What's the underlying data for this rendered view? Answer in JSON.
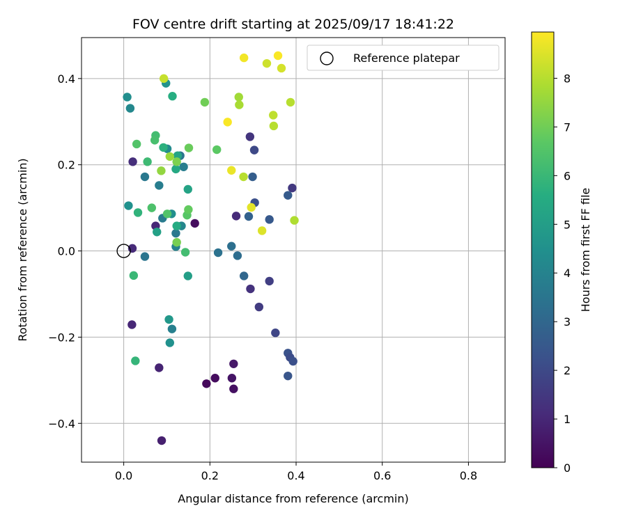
{
  "chart_data": {
    "type": "scatter",
    "title": "FOV centre drift starting at 2025/09/17 18:41:22",
    "xlabel": "Angular distance from reference (arcmin)",
    "ylabel": "Rotation from reference (arcmin)",
    "xlim": [
      -0.098,
      0.885
    ],
    "ylim": [
      -0.49,
      0.495
    ],
    "xticks": [
      0.0,
      0.2,
      0.4,
      0.6,
      0.8
    ],
    "xtick_labels": [
      "0.0",
      "0.2",
      "0.4",
      "0.6",
      "0.8"
    ],
    "yticks": [
      -0.4,
      -0.2,
      0.0,
      0.2,
      0.4
    ],
    "ytick_labels": [
      "−0.4",
      "−0.2",
      "0.0",
      "0.2",
      "0.4"
    ],
    "grid": true,
    "legend": {
      "placement": "top-right",
      "entries": [
        "Reference platepar"
      ]
    },
    "reference_point": {
      "x": 0.0,
      "y": 0.0
    },
    "colorbar": {
      "label": "Hours from first FF file",
      "range": [
        0,
        8.95
      ],
      "ticks": [
        0,
        1,
        2,
        3,
        4,
        5,
        6,
        7,
        8
      ],
      "tick_labels": [
        "0",
        "1",
        "2",
        "3",
        "4",
        "5",
        "6",
        "7",
        "8"
      ],
      "colormap": "viridis"
    },
    "points": [
      {
        "x": 0.165,
        "y": 0.064,
        "h": 0.3
      },
      {
        "x": 0.192,
        "y": -0.308,
        "h": 0.2
      },
      {
        "x": 0.212,
        "y": -0.295,
        "h": 0.3
      },
      {
        "x": 0.251,
        "y": -0.295,
        "h": 0.5
      },
      {
        "x": 0.255,
        "y": -0.262,
        "h": 0.6
      },
      {
        "x": 0.255,
        "y": -0.32,
        "h": 0.4
      },
      {
        "x": 0.088,
        "y": -0.44,
        "h": 0.8
      },
      {
        "x": 0.082,
        "y": -0.271,
        "h": 0.9
      },
      {
        "x": 0.019,
        "y": -0.171,
        "h": 1.0
      },
      {
        "x": 0.02,
        "y": 0.006,
        "h": 1.1
      },
      {
        "x": 0.021,
        "y": 0.207,
        "h": 1.2
      },
      {
        "x": 0.074,
        "y": 0.058,
        "h": 1.0
      },
      {
        "x": 0.261,
        "y": 0.081,
        "h": 1.1
      },
      {
        "x": 0.294,
        "y": -0.088,
        "h": 1.3
      },
      {
        "x": 0.293,
        "y": 0.265,
        "h": 1.4
      },
      {
        "x": 0.314,
        "y": -0.13,
        "h": 1.6
      },
      {
        "x": 0.338,
        "y": -0.07,
        "h": 1.7
      },
      {
        "x": 0.391,
        "y": 0.146,
        "h": 1.5
      },
      {
        "x": 0.352,
        "y": -0.19,
        "h": 1.9
      },
      {
        "x": 0.303,
        "y": 0.234,
        "h": 2.0
      },
      {
        "x": 0.304,
        "y": 0.112,
        "h": 2.2
      },
      {
        "x": 0.338,
        "y": 0.073,
        "h": 2.5
      },
      {
        "x": 0.381,
        "y": -0.237,
        "h": 2.3
      },
      {
        "x": 0.386,
        "y": -0.247,
        "h": 2.1
      },
      {
        "x": 0.393,
        "y": -0.256,
        "h": 2.2
      },
      {
        "x": 0.381,
        "y": -0.29,
        "h": 2.4
      },
      {
        "x": 0.381,
        "y": 0.129,
        "h": 2.6
      },
      {
        "x": 0.299,
        "y": 0.172,
        "h": 2.7
      },
      {
        "x": 0.29,
        "y": 0.08,
        "h": 2.8
      },
      {
        "x": 0.279,
        "y": -0.058,
        "h": 3.0
      },
      {
        "x": 0.264,
        "y": -0.011,
        "h": 3.2
      },
      {
        "x": 0.25,
        "y": 0.011,
        "h": 3.3
      },
      {
        "x": 0.219,
        "y": -0.004,
        "h": 3.4
      },
      {
        "x": 0.049,
        "y": -0.013,
        "h": 3.5
      },
      {
        "x": 0.049,
        "y": 0.172,
        "h": 3.6
      },
      {
        "x": 0.09,
        "y": 0.076,
        "h": 3.7
      },
      {
        "x": 0.082,
        "y": 0.152,
        "h": 3.8
      },
      {
        "x": 0.112,
        "y": -0.181,
        "h": 3.9
      },
      {
        "x": 0.121,
        "y": 0.041,
        "h": 3.6
      },
      {
        "x": 0.131,
        "y": 0.221,
        "h": 3.5
      },
      {
        "x": 0.139,
        "y": 0.195,
        "h": 3.8
      },
      {
        "x": 0.121,
        "y": 0.01,
        "h": 4.0
      },
      {
        "x": 0.134,
        "y": 0.058,
        "h": 4.1
      },
      {
        "x": 0.015,
        "y": 0.331,
        "h": 4.2
      },
      {
        "x": 0.101,
        "y": 0.237,
        "h": 4.3
      },
      {
        "x": 0.008,
        "y": 0.357,
        "h": 4.4
      },
      {
        "x": 0.107,
        "y": -0.213,
        "h": 4.5
      },
      {
        "x": 0.098,
        "y": 0.389,
        "h": 4.6
      },
      {
        "x": 0.011,
        "y": 0.105,
        "h": 4.5
      },
      {
        "x": 0.111,
        "y": 0.086,
        "h": 4.4
      },
      {
        "x": 0.105,
        "y": -0.159,
        "h": 4.8
      },
      {
        "x": 0.149,
        "y": -0.058,
        "h": 5.0
      },
      {
        "x": 0.077,
        "y": 0.044,
        "h": 5.1
      },
      {
        "x": 0.149,
        "y": 0.143,
        "h": 5.2
      },
      {
        "x": 0.125,
        "y": 0.221,
        "h": 5.3
      },
      {
        "x": 0.121,
        "y": 0.19,
        "h": 5.4
      },
      {
        "x": 0.123,
        "y": 0.058,
        "h": 5.5
      },
      {
        "x": 0.113,
        "y": 0.359,
        "h": 5.6
      },
      {
        "x": 0.092,
        "y": 0.24,
        "h": 5.7
      },
      {
        "x": 0.033,
        "y": 0.089,
        "h": 5.8
      },
      {
        "x": 0.027,
        "y": -0.255,
        "h": 5.9
      },
      {
        "x": 0.023,
        "y": -0.057,
        "h": 6.0
      },
      {
        "x": 0.055,
        "y": 0.207,
        "h": 6.1
      },
      {
        "x": 0.074,
        "y": 0.268,
        "h": 6.2
      },
      {
        "x": 0.072,
        "y": 0.257,
        "h": 6.3
      },
      {
        "x": 0.143,
        "y": -0.003,
        "h": 6.2
      },
      {
        "x": 0.065,
        "y": 0.1,
        "h": 6.4
      },
      {
        "x": 0.101,
        "y": 0.086,
        "h": 6.5
      },
      {
        "x": 0.03,
        "y": 0.248,
        "h": 6.5
      },
      {
        "x": 0.147,
        "y": 0.083,
        "h": 6.6
      },
      {
        "x": 0.216,
        "y": 0.235,
        "h": 6.7
      },
      {
        "x": 0.15,
        "y": 0.096,
        "h": 6.8
      },
      {
        "x": 0.151,
        "y": 0.239,
        "h": 6.9
      },
      {
        "x": 0.188,
        "y": 0.345,
        "h": 7.0
      },
      {
        "x": 0.123,
        "y": 0.02,
        "h": 7.1
      },
      {
        "x": 0.123,
        "y": 0.207,
        "h": 7.2
      },
      {
        "x": 0.087,
        "y": 0.186,
        "h": 7.5
      },
      {
        "x": 0.107,
        "y": 0.219,
        "h": 7.6
      },
      {
        "x": 0.267,
        "y": 0.357,
        "h": 7.7
      },
      {
        "x": 0.268,
        "y": 0.339,
        "h": 7.8
      },
      {
        "x": 0.278,
        "y": 0.172,
        "h": 8.0
      },
      {
        "x": 0.347,
        "y": 0.315,
        "h": 8.1
      },
      {
        "x": 0.348,
        "y": 0.29,
        "h": 8.0
      },
      {
        "x": 0.387,
        "y": 0.345,
        "h": 8.0
      },
      {
        "x": 0.396,
        "y": 0.071,
        "h": 7.9
      },
      {
        "x": 0.093,
        "y": 0.4,
        "h": 8.2
      },
      {
        "x": 0.332,
        "y": 0.435,
        "h": 8.3
      },
      {
        "x": 0.366,
        "y": 0.424,
        "h": 8.4
      },
      {
        "x": 0.296,
        "y": 0.101,
        "h": 8.6
      },
      {
        "x": 0.321,
        "y": 0.047,
        "h": 8.5
      },
      {
        "x": 0.25,
        "y": 0.187,
        "h": 8.7
      },
      {
        "x": 0.279,
        "y": 0.448,
        "h": 8.8
      },
      {
        "x": 0.358,
        "y": 0.453,
        "h": 8.9
      },
      {
        "x": 0.241,
        "y": 0.299,
        "h": 8.9
      }
    ]
  }
}
